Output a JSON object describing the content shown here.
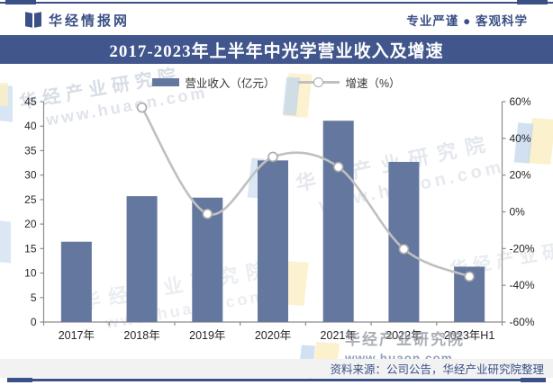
{
  "header": {
    "brand": "华经情报网",
    "slogan": "专业严谨 ● 客观科学"
  },
  "title_bar": {
    "title": "2017-2023年上半年中光学营业收入及增速"
  },
  "legend": {
    "bar_label": "营业收入（亿元）",
    "line_label": "增速（%）"
  },
  "footer": {
    "source": "资料来源：公司公告，华经产业研究院整理"
  },
  "watermark": {
    "org": "华经产业研究院",
    "url": "www.huaon.com"
  },
  "colors": {
    "brand_blue": "#3A5086",
    "title_bar_bg": "#41568C",
    "bar_fill": "#64779E",
    "line_color": "#C0C0C0",
    "marker_stroke": "#A9A9A9",
    "axis_color": "#8C8C8C",
    "tick_text": "#262626",
    "footer_bg": "#F2F2F3",
    "watermark_blue": "#BDD4EC",
    "watermark_yellow": "#FBEFC4"
  },
  "chart_data": {
    "type": "bar",
    "combo": "bar+line",
    "title": "2017-2023年上半年中光学营业收入及增速",
    "categories": [
      "2017年",
      "2018年",
      "2019年",
      "2020年",
      "2021年",
      "2022年",
      "2023年H1"
    ],
    "series": [
      {
        "name": "营业收入（亿元）",
        "type": "bar",
        "axis": "left",
        "values": [
          16.4,
          25.7,
          25.4,
          33.0,
          41.1,
          32.7,
          11.3
        ]
      },
      {
        "name": "增速（%）",
        "type": "line",
        "axis": "right",
        "values": [
          null,
          56.8,
          -1.1,
          29.9,
          24.4,
          -20.3,
          -35.2
        ]
      }
    ],
    "left_axis": {
      "min": 0,
      "max": 45,
      "step": 5,
      "ticks": [
        "45",
        "40",
        "35",
        "30",
        "25",
        "20",
        "15",
        "10",
        "5",
        "0"
      ]
    },
    "right_axis": {
      "min": -60,
      "max": 60,
      "step": 20,
      "ticks": [
        "60%",
        "40%",
        "20%",
        "0%",
        "-20%",
        "-40%",
        "-60%"
      ]
    },
    "grid": false,
    "legend_position": "top"
  }
}
